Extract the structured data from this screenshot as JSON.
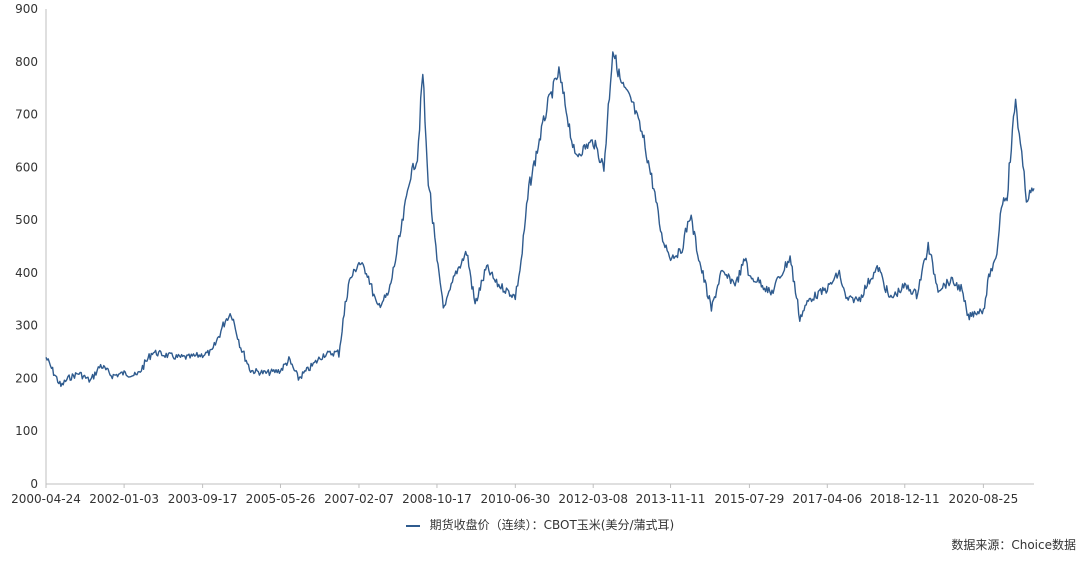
{
  "chart_data": {
    "type": "line",
    "ylim": [
      0,
      900
    ],
    "y_ticks": [
      0,
      100,
      200,
      300,
      400,
      500,
      600,
      700,
      800,
      900
    ],
    "x_tick_labels": [
      "2000-04-24",
      "2002-01-03",
      "2003-09-17",
      "2005-05-26",
      "2007-02-07",
      "2008-10-17",
      "2010-06-30",
      "2012-03-08",
      "2013-11-11",
      "2015-07-29",
      "2017-04-06",
      "2018-12-11",
      "2020-08-25"
    ],
    "x_range": [
      "2000-04-24",
      "2021-09-30"
    ],
    "grid": false,
    "legend_position": "bottom",
    "line_color": "#2f5b8e",
    "series": [
      {
        "name": "期货收盘价（连续）：CBOT玉米(美分/蒲式耳)",
        "points": [
          [
            "2000-04-24",
            240
          ],
          [
            "2000-06-15",
            215
          ],
          [
            "2000-08-20",
            185
          ],
          [
            "2000-10-15",
            200
          ],
          [
            "2001-01-10",
            210
          ],
          [
            "2001-04-10",
            195
          ],
          [
            "2001-07-01",
            225
          ],
          [
            "2001-10-01",
            205
          ],
          [
            "2002-01-03",
            210
          ],
          [
            "2002-04-15",
            205
          ],
          [
            "2002-08-15",
            250
          ],
          [
            "2002-11-15",
            245
          ],
          [
            "2003-03-01",
            240
          ],
          [
            "2003-06-01",
            240
          ],
          [
            "2003-09-17",
            245
          ],
          [
            "2003-12-01",
            250
          ],
          [
            "2004-03-15",
            310
          ],
          [
            "2004-05-01",
            325
          ],
          [
            "2004-07-15",
            260
          ],
          [
            "2004-10-01",
            215
          ],
          [
            "2005-02-01",
            210
          ],
          [
            "2005-05-26",
            215
          ],
          [
            "2005-08-01",
            235
          ],
          [
            "2005-10-15",
            200
          ],
          [
            "2006-01-15",
            220
          ],
          [
            "2006-05-01",
            245
          ],
          [
            "2006-09-01",
            250
          ],
          [
            "2006-11-15",
            380
          ],
          [
            "2007-02-07",
            420
          ],
          [
            "2007-04-15",
            400
          ],
          [
            "2007-07-01",
            335
          ],
          [
            "2007-10-01",
            360
          ],
          [
            "2008-01-15",
            490
          ],
          [
            "2008-03-15",
            580
          ],
          [
            "2008-05-15",
            620
          ],
          [
            "2008-06-27",
            780
          ],
          [
            "2008-08-01",
            600
          ],
          [
            "2008-10-17",
            420
          ],
          [
            "2008-12-15",
            330
          ],
          [
            "2009-03-15",
            400
          ],
          [
            "2009-06-10",
            440
          ],
          [
            "2009-08-15",
            340
          ],
          [
            "2009-11-15",
            410
          ],
          [
            "2010-02-01",
            380
          ],
          [
            "2010-06-30",
            355
          ],
          [
            "2010-08-15",
            420
          ],
          [
            "2010-10-15",
            560
          ],
          [
            "2011-01-15",
            660
          ],
          [
            "2011-03-15",
            720
          ],
          [
            "2011-06-10",
            780
          ],
          [
            "2011-08-15",
            700
          ],
          [
            "2011-10-15",
            620
          ],
          [
            "2012-01-15",
            640
          ],
          [
            "2012-03-08",
            650
          ],
          [
            "2012-06-01",
            600
          ],
          [
            "2012-08-10",
            825
          ],
          [
            "2012-10-15",
            760
          ],
          [
            "2013-01-15",
            720
          ],
          [
            "2013-04-15",
            650
          ],
          [
            "2013-07-01",
            560
          ],
          [
            "2013-09-01",
            470
          ],
          [
            "2013-11-11",
            430
          ],
          [
            "2014-02-01",
            440
          ],
          [
            "2014-04-15",
            510
          ],
          [
            "2014-07-01",
            420
          ],
          [
            "2014-10-01",
            330
          ],
          [
            "2014-12-15",
            400
          ],
          [
            "2015-04-15",
            380
          ],
          [
            "2015-07-01",
            430
          ],
          [
            "2015-07-29",
            390
          ],
          [
            "2015-10-15",
            385
          ],
          [
            "2016-01-15",
            360
          ],
          [
            "2016-06-15",
            430
          ],
          [
            "2016-08-31",
            315
          ],
          [
            "2016-11-15",
            350
          ],
          [
            "2017-04-06",
            370
          ],
          [
            "2017-07-10",
            400
          ],
          [
            "2017-09-01",
            350
          ],
          [
            "2017-12-15",
            350
          ],
          [
            "2018-03-15",
            390
          ],
          [
            "2018-05-15",
            410
          ],
          [
            "2018-08-15",
            350
          ],
          [
            "2018-12-11",
            375
          ],
          [
            "2019-03-15",
            360
          ],
          [
            "2019-06-15",
            450
          ],
          [
            "2019-09-01",
            370
          ],
          [
            "2019-12-15",
            385
          ],
          [
            "2020-03-01",
            370
          ],
          [
            "2020-04-27",
            315
          ],
          [
            "2020-06-15",
            325
          ],
          [
            "2020-08-25",
            330
          ],
          [
            "2020-10-15",
            400
          ],
          [
            "2020-12-01",
            420
          ],
          [
            "2021-01-15",
            530
          ],
          [
            "2021-03-01",
            550
          ],
          [
            "2021-05-07",
            730
          ],
          [
            "2021-06-15",
            640
          ],
          [
            "2021-08-01",
            540
          ],
          [
            "2021-09-30",
            560
          ]
        ]
      }
    ],
    "source_note": "数据来源：Choice数据"
  }
}
